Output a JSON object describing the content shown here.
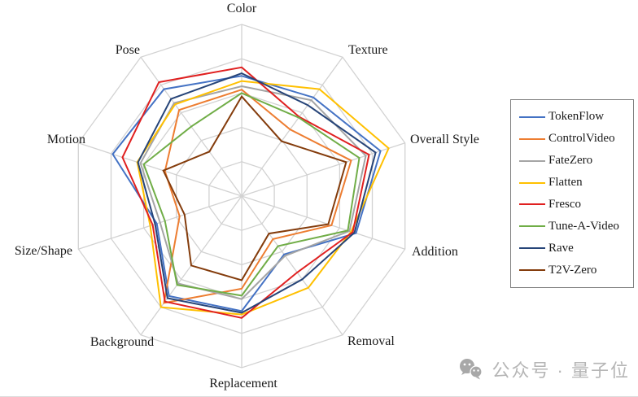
{
  "chart_data": {
    "type": "radar",
    "title": "",
    "categories": [
      "Color",
      "Texture",
      "Overall Style",
      "Addition",
      "Removal",
      "Replacement",
      "Background",
      "Size/Shape",
      "Motion",
      "Pose"
    ],
    "rings": 5,
    "scale_max": 1.0,
    "grid_color": "#d2d2d2",
    "legend_position": "right",
    "series": [
      {
        "name": "TokenFlow",
        "color": "#4472C4",
        "values": [
          0.7,
          0.71,
          0.85,
          0.7,
          0.42,
          0.67,
          0.72,
          0.52,
          0.79,
          0.77
        ]
      },
      {
        "name": "ControlVideo",
        "color": "#ED7D31",
        "values": [
          0.62,
          0.48,
          0.67,
          0.55,
          0.31,
          0.54,
          0.77,
          0.38,
          0.47,
          0.62
        ]
      },
      {
        "name": "FateZero",
        "color": "#A5A5A5",
        "values": [
          0.64,
          0.69,
          0.76,
          0.66,
          0.43,
          0.6,
          0.63,
          0.5,
          0.62,
          0.67
        ]
      },
      {
        "name": "Flatten",
        "color": "#FFC000",
        "values": [
          0.67,
          0.77,
          0.9,
          0.67,
          0.66,
          0.69,
          0.8,
          0.56,
          0.64,
          0.66
        ]
      },
      {
        "name": "Fresco",
        "color": "#E02020",
        "values": [
          0.75,
          0.57,
          0.78,
          0.68,
          0.55,
          0.71,
          0.76,
          0.545,
          0.73,
          0.82
        ]
      },
      {
        "name": "Tune-A-Video",
        "color": "#70AD47",
        "values": [
          0.6,
          0.565,
          0.72,
          0.65,
          0.36,
          0.58,
          0.64,
          0.47,
          0.6,
          0.5
        ]
      },
      {
        "name": "Rave",
        "color": "#264478",
        "values": [
          0.715,
          0.655,
          0.82,
          0.69,
          0.6,
          0.68,
          0.735,
          0.53,
          0.635,
          0.7
        ]
      },
      {
        "name": "T2V-Zero",
        "color": "#843C0C",
        "values": [
          0.58,
          0.395,
          0.64,
          0.53,
          0.27,
          0.49,
          0.5,
          0.35,
          0.48,
          0.32
        ]
      }
    ]
  },
  "legend": {
    "items": [
      "TokenFlow",
      "ControlVideo",
      "FateZero",
      "Flatten",
      "Fresco",
      "Tune-A-Video",
      "Rave",
      "T2V-Zero"
    ]
  },
  "watermark": {
    "text": "公众号 · 量子位",
    "icon": "wechat-icon",
    "color": "#b5b5b5"
  }
}
